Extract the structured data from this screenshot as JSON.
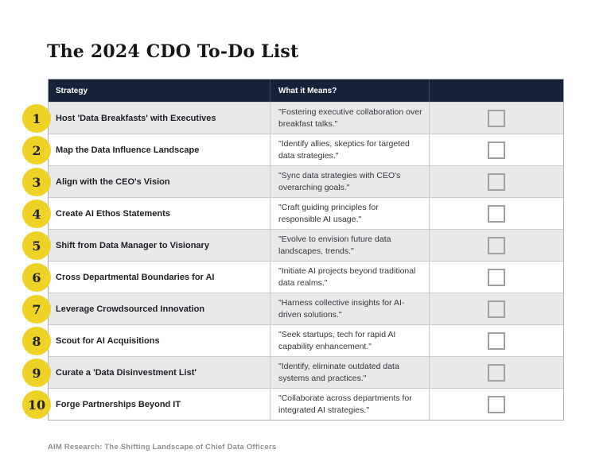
{
  "page": {
    "title": "The 2024 CDO To-Do List",
    "footer": "AIM Research: The Shifting Landscape of Chief Data Officers"
  },
  "colors": {
    "header_bg": "#152238",
    "badge_yellow": "#F0D226",
    "row_alt_bg": "#E8E9EA",
    "checkbox_border": "#9EA1A4"
  },
  "table": {
    "headers": {
      "strategy": "Strategy",
      "meaning": "What it Means?",
      "checkbox": ""
    },
    "rows": [
      {
        "number": "1",
        "strategy": "Host 'Data Breakfasts' with Executives",
        "meaning": "\"Fostering executive collaboration over breakfast talks.\""
      },
      {
        "number": "2",
        "strategy": "Map the Data Influence Landscape",
        "meaning": "\"Identify allies, skeptics for targeted data strategies.\""
      },
      {
        "number": "3",
        "strategy": "Align with the CEO's Vision",
        "meaning": "\"Sync data strategies with CEO's overarching goals.\""
      },
      {
        "number": "4",
        "strategy": "Create AI Ethos Statements",
        "meaning": "\"Craft guiding principles for responsible AI usage.\""
      },
      {
        "number": "5",
        "strategy": "Shift from Data Manager to Visionary",
        "meaning": "\"Evolve to envision future data landscapes, trends.\""
      },
      {
        "number": "6",
        "strategy": "Cross Departmental Boundaries for AI",
        "meaning": "\"Initiate AI projects beyond traditional data realms.\""
      },
      {
        "number": "7",
        "strategy": "Leverage Crowdsourced Innovation",
        "meaning": "\"Harness collective insights for AI-driven solutions.\""
      },
      {
        "number": "8",
        "strategy": "Scout for AI Acquisitions",
        "meaning": "\"Seek startups, tech for rapid AI capability enhancement.\""
      },
      {
        "number": "9",
        "strategy": "Curate a 'Data Disinvestment List'",
        "meaning": "\"Identify, eliminate outdated data systems and practices.\""
      },
      {
        "number": "10",
        "strategy": "Forge Partnerships Beyond IT",
        "meaning": "\"Collaborate across departments for integrated AI strategies.\""
      }
    ]
  }
}
